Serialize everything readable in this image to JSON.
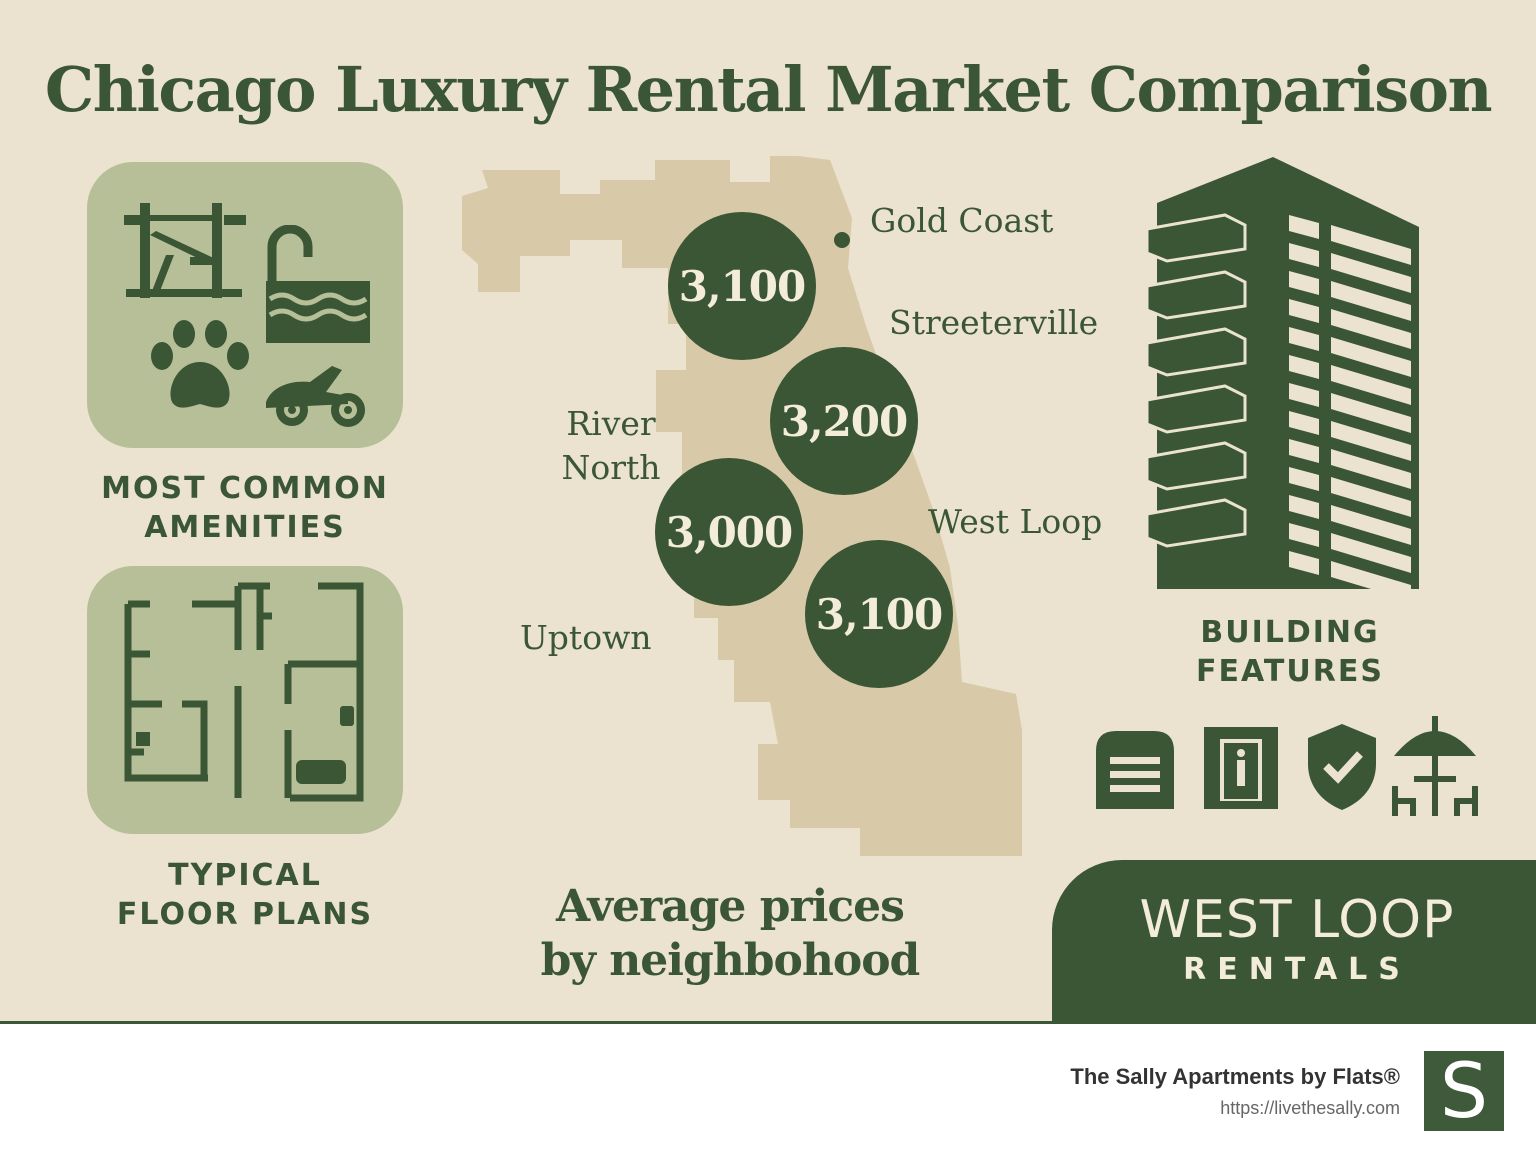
{
  "title": "Chicago Luxury Rental Market Comparison",
  "amenities": {
    "label_line1": "MOST COMMON",
    "label_line2": "AMENITIES",
    "icons": [
      "gym-icon",
      "pool-icon",
      "paw-icon",
      "bike-icon"
    ]
  },
  "floor_plans": {
    "label_line1": "TYPICAL",
    "label_line2": "FLOOR PLANS",
    "icon": "floor-plan-icon"
  },
  "map": {
    "neighborhoods": [
      {
        "name": "Gold Coast",
        "price": "3,100"
      },
      {
        "name": "Streeterville",
        "price": "3,200"
      },
      {
        "name_line1": "River",
        "name_line2": "North",
        "price": "3,000"
      },
      {
        "name": "West Loop",
        "price": "3,100"
      },
      {
        "name": "Uptown"
      }
    ],
    "caption_line1": "Average prices",
    "caption_line2": "by neighbohood"
  },
  "building": {
    "label_line1": "BUILDING",
    "label_line2": "FEATURES",
    "icon": "building-icon",
    "feature_icons": [
      "garage-icon",
      "elevator-icon",
      "security-shield-icon",
      "patio-icon"
    ]
  },
  "brand": {
    "main": "WEST LOOP",
    "sub": "RENTALS"
  },
  "footer": {
    "name": "The Sally Apartments by Flats®",
    "url": "https://livethesally.com",
    "logo_letter": "S"
  },
  "colors": {
    "background": "#ebe3cf",
    "dark_green": "#3a5634",
    "panel_green": "#b7bf98",
    "map_tan": "#d8c9a8"
  }
}
